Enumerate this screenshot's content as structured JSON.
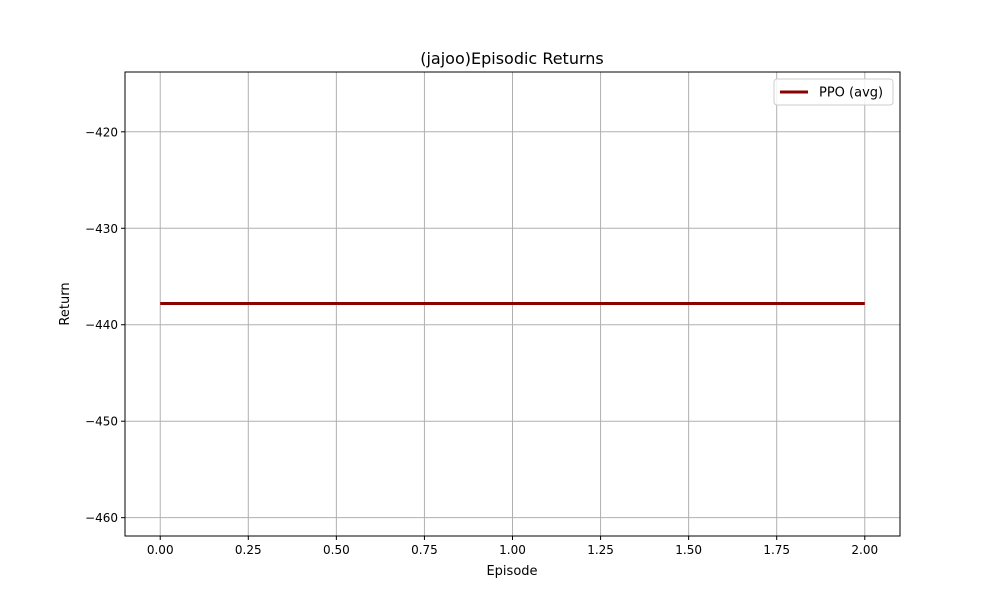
{
  "chart_data": {
    "type": "line",
    "title": "(jajoo)Episodic Returns",
    "xlabel": "Episode",
    "ylabel": "Return",
    "xlim": [
      -0.1,
      2.1
    ],
    "ylim": [
      -461.9,
      -413.8
    ],
    "xticks": [
      0.0,
      0.25,
      0.5,
      0.75,
      1.0,
      1.25,
      1.5,
      1.75,
      2.0
    ],
    "xtick_labels": [
      "0.00",
      "0.25",
      "0.50",
      "0.75",
      "1.00",
      "1.25",
      "1.50",
      "1.75",
      "2.00"
    ],
    "yticks": [
      -460,
      -450,
      -440,
      -430,
      -420
    ],
    "ytick_labels": [
      "−460",
      "−450",
      "−440",
      "−430",
      "−420"
    ],
    "grid": true,
    "legend_position": "upper right",
    "series": [
      {
        "name": "PPO (avg)",
        "color": "#8b0000",
        "x": [
          0,
          1,
          2
        ],
        "y": [
          -437.8,
          -437.8,
          -437.8
        ]
      }
    ]
  }
}
